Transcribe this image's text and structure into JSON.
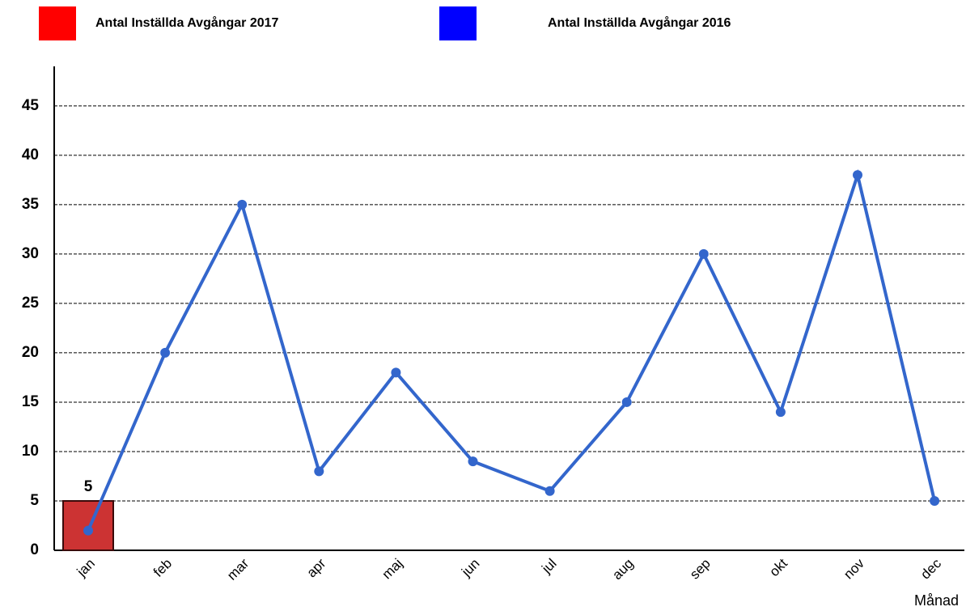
{
  "chart_data": {
    "type": "bar+line",
    "x_label": "Månad",
    "categories": [
      "jan",
      "feb",
      "mar",
      "apr",
      "maj",
      "jun",
      "jul",
      "aug",
      "sep",
      "okt",
      "nov",
      "dec"
    ],
    "series": [
      {
        "name": "Antal Inställda Avgångar 2017",
        "type": "bar",
        "color": "#cc3333",
        "legend_color": "#ff0000",
        "values": [
          5,
          null,
          null,
          null,
          null,
          null,
          null,
          null,
          null,
          null,
          null,
          null
        ]
      },
      {
        "name": "Antal Inställda Avgångar 2016",
        "type": "line",
        "color": "#3366cc",
        "legend_color": "#0000ff",
        "values": [
          2,
          20,
          35,
          8,
          18,
          9,
          6,
          15,
          30,
          14,
          38,
          5
        ]
      }
    ],
    "ylim": [
      0,
      49
    ],
    "yticks": [
      0,
      5,
      10,
      15,
      20,
      25,
      30,
      35,
      40,
      45
    ],
    "grid": true
  }
}
